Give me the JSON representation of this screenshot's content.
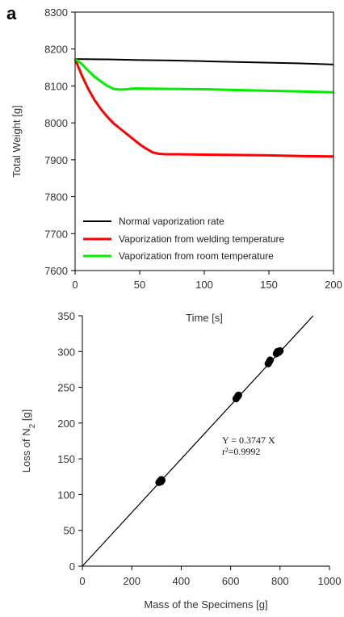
{
  "chart_data": [
    {
      "type": "line",
      "panel_label": "a",
      "xlabel": "Time [s]",
      "ylabel": "Total Weight [g]",
      "xlim": [
        0,
        200
      ],
      "ylim": [
        7600,
        8300
      ],
      "xticks": [
        0,
        50,
        100,
        150,
        200
      ],
      "yticks": [
        7600,
        7700,
        7800,
        7900,
        8000,
        8100,
        8200,
        8300
      ],
      "grid": false,
      "legend_position": "bottom-left",
      "series": [
        {
          "name": "Normal vaporization rate",
          "color": "#000000",
          "x": [
            0,
            25,
            50,
            75,
            100,
            125,
            150,
            175,
            200
          ],
          "y": [
            8173,
            8172,
            8170,
            8169,
            8167,
            8165,
            8163,
            8161,
            8158
          ]
        },
        {
          "name": "Vaporization from welding temperature",
          "color": "#ff0000",
          "x": [
            0,
            5,
            10,
            15,
            20,
            25,
            30,
            35,
            40,
            45,
            50,
            55,
            60,
            65,
            70,
            80,
            100,
            125,
            150,
            175,
            200
          ],
          "y": [
            8173,
            8130,
            8093,
            8062,
            8037,
            8016,
            7998,
            7984,
            7970,
            7956,
            7942,
            7930,
            7920,
            7916,
            7915,
            7915,
            7914,
            7913,
            7912,
            7910,
            7909
          ]
        },
        {
          "name": "Vaporization from room temperature",
          "color": "#00ee00",
          "x": [
            0,
            5,
            10,
            15,
            20,
            25,
            30,
            35,
            40,
            45,
            50,
            75,
            100,
            125,
            150,
            175,
            200
          ],
          "y": [
            8173,
            8160,
            8142,
            8125,
            8112,
            8100,
            8092,
            8090,
            8091,
            8093,
            8093,
            8092,
            8091,
            8089,
            8087,
            8085,
            8083
          ]
        }
      ]
    },
    {
      "type": "scatter",
      "xlabel": "Mass of the Specimens [g]",
      "ylabel_main": "Loss of N",
      "ylabel_sub": "2",
      "ylabel_unit": " [g]",
      "xlim": [
        0,
        1000
      ],
      "ylim": [
        0,
        350
      ],
      "xticks": [
        0,
        200,
        400,
        600,
        800,
        1000
      ],
      "yticks": [
        0,
        50,
        100,
        150,
        200,
        250,
        300,
        350
      ],
      "grid": false,
      "points": {
        "color": "#000000",
        "x": [
          310,
          315,
          318,
          320,
          322,
          622,
          628,
          632,
          752,
          757,
          760,
          785,
          790,
          795,
          800
        ],
        "y": [
          117,
          119,
          118,
          121,
          120,
          234,
          237,
          239,
          283,
          286,
          288,
          297,
          300,
          299,
          301
        ]
      },
      "fit_line": {
        "slope": 0.3747,
        "intercept": 0,
        "color": "#000000"
      },
      "annotation": {
        "equation": "Y = 0.3747 X",
        "r2": "r²=0.9992"
      }
    }
  ]
}
